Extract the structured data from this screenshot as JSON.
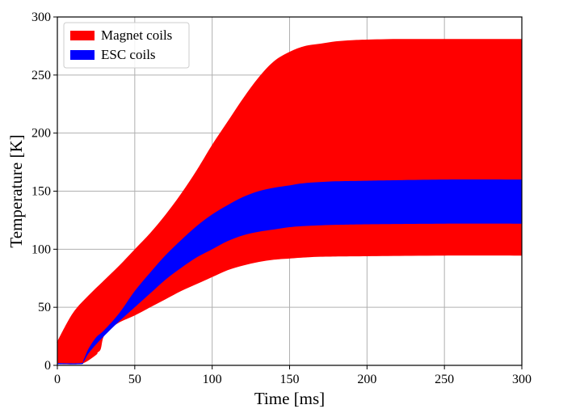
{
  "chart_data": {
    "type": "area",
    "title": "",
    "xlabel": "Time [ms]",
    "ylabel": "Temperature [K]",
    "xlim": [
      0,
      300
    ],
    "ylim": [
      0,
      300
    ],
    "xticks": [
      0,
      50,
      100,
      150,
      200,
      250,
      300
    ],
    "yticks": [
      0,
      50,
      100,
      150,
      200,
      250,
      300
    ],
    "grid": true,
    "legend_position": "top-left",
    "series": [
      {
        "name": "Magnet coils",
        "color": "#ff0000",
        "x": [
          0,
          0.5,
          10,
          20,
          30,
          40,
          50,
          60,
          70,
          80,
          90,
          100,
          110,
          120,
          130,
          140,
          150,
          160,
          170,
          180,
          190,
          200,
          220,
          250,
          300
        ],
        "upper": [
          20,
          22,
          45,
          60,
          73,
          86,
          100,
          114,
          130,
          148,
          168,
          190,
          210,
          230,
          248,
          262,
          270,
          275,
          277,
          279,
          280,
          280.5,
          281,
          281,
          281
        ],
        "x_lower": [
          0,
          10,
          17,
          25,
          26,
          28,
          30,
          35,
          40,
          50,
          60,
          70,
          80,
          90,
          100,
          110,
          120,
          130,
          140,
          150,
          170,
          200,
          250,
          300
        ],
        "lower": [
          1,
          1,
          2,
          9,
          11,
          14,
          25,
          32,
          37,
          43,
          50,
          57,
          64,
          70,
          76,
          82,
          86,
          89,
          91,
          92,
          93.5,
          94,
          94.5,
          94.5
        ]
      },
      {
        "name": "ESC coils",
        "color": "#0000ff",
        "x": [
          0,
          15,
          17,
          20,
          25,
          30,
          40,
          50,
          60,
          70,
          80,
          90,
          100,
          110,
          120,
          130,
          140,
          150,
          160,
          180,
          200,
          250,
          300
        ],
        "upper": [
          2,
          2,
          5,
          14,
          24,
          30,
          45,
          64,
          80,
          95,
          108,
          120,
          130,
          138,
          145,
          150,
          153,
          155,
          157,
          158.5,
          159,
          160,
          160
        ],
        "lower": [
          1,
          1,
          3,
          10,
          18,
          25,
          38,
          50,
          62,
          74,
          84,
          93,
          100,
          107,
          112,
          115,
          117,
          119,
          120,
          121,
          121.5,
          122,
          122
        ]
      }
    ]
  }
}
